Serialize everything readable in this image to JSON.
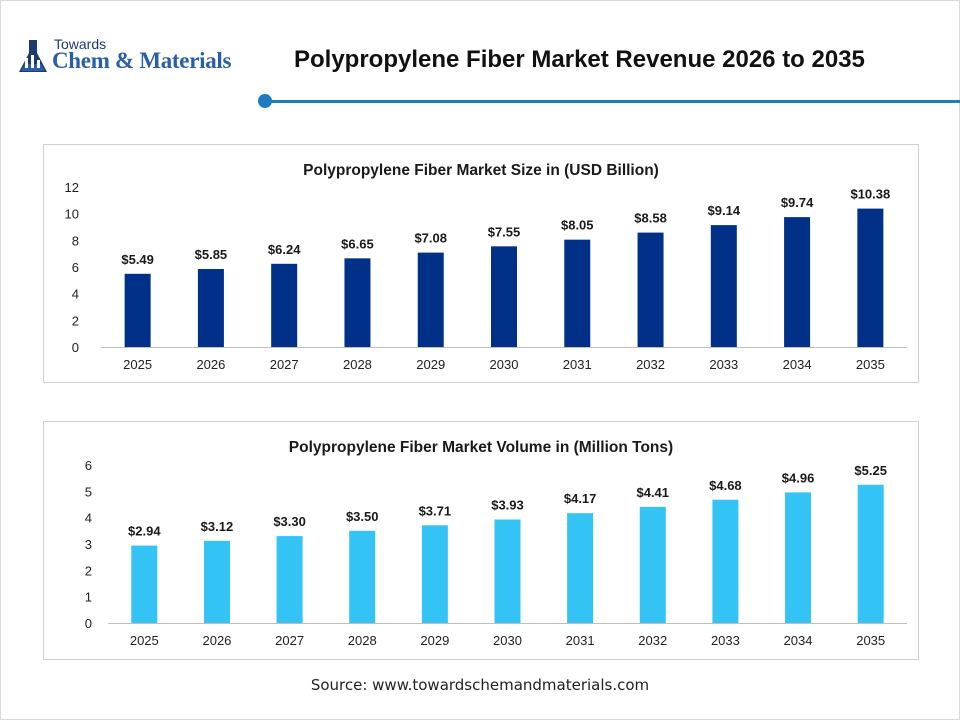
{
  "header": {
    "logo_top": "Towards",
    "logo_main": "Chem & Materials",
    "title": "Polypropylene Fiber Market Revenue 2026 to 2035"
  },
  "colors": {
    "accent": "#1f7bc0",
    "revenue_bar": "#003087",
    "volume_bar": "#33c3f5"
  },
  "chart_data": [
    {
      "type": "bar",
      "title": "Polypropylene Fiber Market Size in (USD Billion)",
      "categories": [
        "2025",
        "2026",
        "2027",
        "2028",
        "2029",
        "2030",
        "2031",
        "2032",
        "2033",
        "2034",
        "2035"
      ],
      "values": [
        5.49,
        5.85,
        6.24,
        6.65,
        7.08,
        7.55,
        8.05,
        8.58,
        9.14,
        9.74,
        10.38
      ],
      "value_labels": [
        "$5.49",
        "$5.85",
        "$6.24",
        "$6.65",
        "$7.08",
        "$7.55",
        "$8.05",
        "$8.58",
        "$9.14",
        "$9.74",
        "$10.38"
      ],
      "ylim": [
        0,
        12
      ],
      "yticks": [
        "0",
        "2",
        "4",
        "6",
        "8",
        "10",
        "12"
      ],
      "grid": false,
      "color": "#003087"
    },
    {
      "type": "bar",
      "title": "Polypropylene Fiber Market Volume in (Million Tons)",
      "categories": [
        "2025",
        "2026",
        "2027",
        "2028",
        "2029",
        "2030",
        "2031",
        "2032",
        "2033",
        "2034",
        "2035"
      ],
      "values": [
        2.94,
        3.12,
        3.3,
        3.5,
        3.71,
        3.93,
        4.17,
        4.41,
        4.68,
        4.96,
        5.25
      ],
      "value_labels": [
        "$2.94",
        "$3.12",
        "$3.30",
        "$3.50",
        "$3.71",
        "$3.93",
        "$4.17",
        "$4.41",
        "$4.68",
        "$4.96",
        "$5.25"
      ],
      "ylim": [
        0,
        6
      ],
      "yticks": [
        "0",
        "1",
        "2",
        "3",
        "4",
        "5",
        "6"
      ],
      "grid": false,
      "color": "#33c3f5"
    }
  ],
  "footer": {
    "source": "Source: www.towardschemandmaterials.com"
  }
}
